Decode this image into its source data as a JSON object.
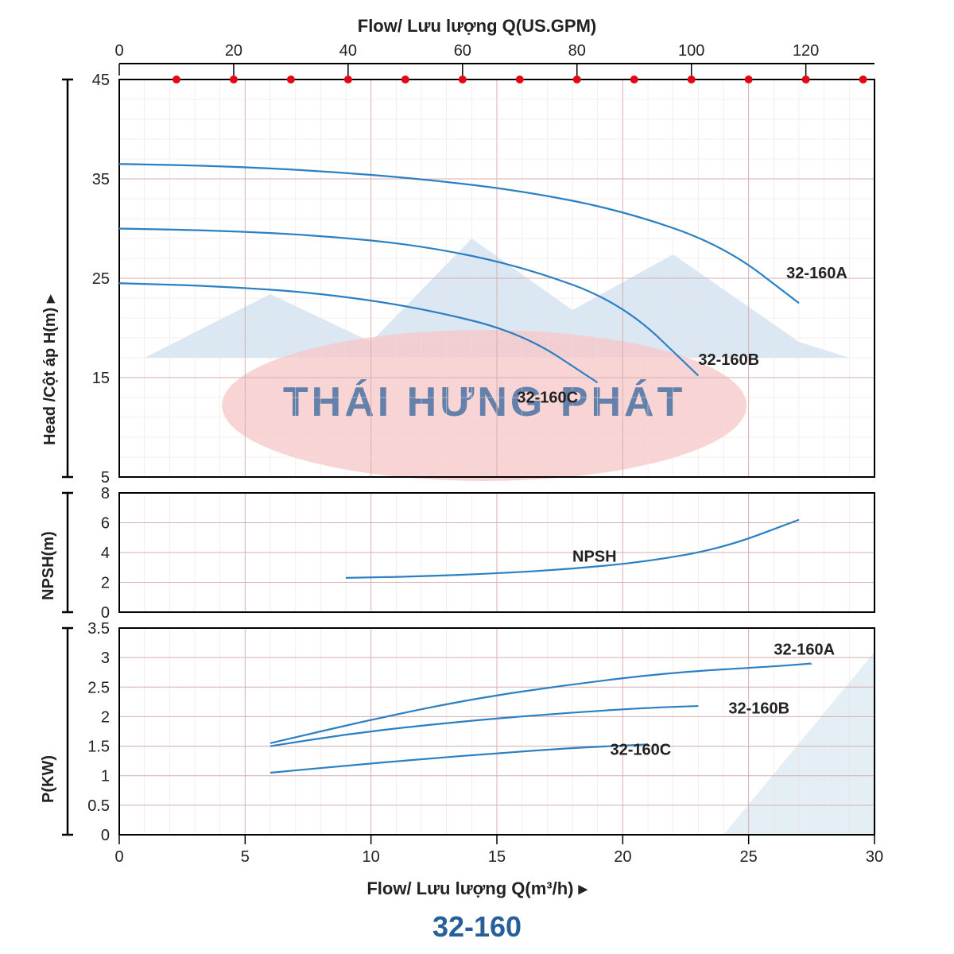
{
  "title_model": "32-160",
  "top_axis": {
    "title": "Flow/ Lưu lượng Q(US.GPM)",
    "ticks": [
      0,
      20,
      40,
      60,
      80,
      100,
      120
    ]
  },
  "bottom_axis": {
    "title": "Flow/ Lưu lượng Q(m³/h)  ▸",
    "ticks": [
      0,
      5,
      10,
      15,
      20,
      25,
      30
    ]
  },
  "x_domain_m3h": [
    0,
    30
  ],
  "panels": {
    "head": {
      "ylabel": "Head /Cột áp H(m) ▸",
      "ylim": [
        5,
        45
      ],
      "yticks": [
        5,
        15,
        25,
        35,
        45
      ],
      "curves": [
        {
          "name": "32-160A",
          "label_pos": [
            26.5,
            25
          ],
          "points": [
            [
              0,
              36.5
            ],
            [
              4,
              36.3
            ],
            [
              8,
              35.8
            ],
            [
              12,
              35.0
            ],
            [
              16,
              33.8
            ],
            [
              20,
              31.8
            ],
            [
              24,
              28.3
            ],
            [
              27,
              22.5
            ]
          ]
        },
        {
          "name": "32-160B",
          "label_pos": [
            23,
            16.3
          ],
          "points": [
            [
              0,
              30.0
            ],
            [
              4,
              29.8
            ],
            [
              8,
              29.3
            ],
            [
              12,
              28.3
            ],
            [
              16,
              26.2
            ],
            [
              20,
              22.5
            ],
            [
              23,
              15.2
            ]
          ]
        },
        {
          "name": "32-160C",
          "label_pos": [
            15.8,
            12.5
          ],
          "points": [
            [
              0,
              24.5
            ],
            [
              4,
              24.2
            ],
            [
              8,
              23.5
            ],
            [
              12,
              22.0
            ],
            [
              16,
              19.5
            ],
            [
              19,
              14.5
            ]
          ]
        }
      ]
    },
    "npsh": {
      "ylabel": "NPSH(m)",
      "ylim": [
        0,
        8
      ],
      "yticks": [
        0,
        2,
        4,
        6,
        8
      ],
      "curves": [
        {
          "name": "NPSH",
          "label_pos": [
            18,
            3.4
          ],
          "points": [
            [
              9,
              2.3
            ],
            [
              12,
              2.4
            ],
            [
              15,
              2.6
            ],
            [
              18,
              2.9
            ],
            [
              21,
              3.4
            ],
            [
              24,
              4.3
            ],
            [
              27,
              6.2
            ]
          ]
        }
      ]
    },
    "power": {
      "ylabel": "P(KW)",
      "ylim": [
        0,
        3.5
      ],
      "yticks": [
        0,
        0.5,
        1,
        1.5,
        2,
        2.5,
        3,
        3.5
      ],
      "curves": [
        {
          "name": "32-160A",
          "label_pos": [
            26,
            3.05
          ],
          "points": [
            [
              6,
              1.55
            ],
            [
              10,
              1.95
            ],
            [
              14,
              2.3
            ],
            [
              18,
              2.55
            ],
            [
              22,
              2.75
            ],
            [
              26,
              2.85
            ],
            [
              27.5,
              2.9
            ]
          ]
        },
        {
          "name": "32-160B",
          "label_pos": [
            24.2,
            2.05
          ],
          "points": [
            [
              6,
              1.5
            ],
            [
              9,
              1.7
            ],
            [
              12,
              1.85
            ],
            [
              15,
              1.97
            ],
            [
              18,
              2.07
            ],
            [
              21,
              2.15
            ],
            [
              23,
              2.18
            ]
          ]
        },
        {
          "name": "32-160C",
          "label_pos": [
            19.5,
            1.35
          ],
          "points": [
            [
              6,
              1.05
            ],
            [
              9,
              1.17
            ],
            [
              12,
              1.28
            ],
            [
              15,
              1.38
            ],
            [
              18,
              1.47
            ],
            [
              21,
              1.53
            ]
          ]
        }
      ]
    }
  },
  "colors": {
    "grid": "#d6afaf",
    "grid_light": "#f0dede",
    "border": "#000000",
    "curve": "#2b7fc3",
    "marker": "#e30613",
    "text": "#222222",
    "accent": "#265f9a",
    "watermark_ellipse": "#f7c6c6",
    "watermark_mountain": "#bdd6ea",
    "bg_shape": "#d0e2ef"
  },
  "watermark_text": "THÁI HƯNG PHÁT",
  "styling": {
    "line_width": 2.2,
    "marker_radius": 5,
    "title_fontsize": 22,
    "model_fontsize": 36,
    "tick_fontsize": 20
  }
}
